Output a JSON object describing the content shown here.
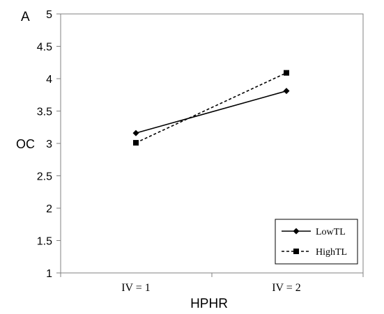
{
  "chart_data": {
    "type": "line",
    "panel_label": "A",
    "xlabel": "HPHR",
    "ylabel": "OC",
    "categories": [
      "IV = 1",
      "IV = 2"
    ],
    "ylim": [
      1,
      5
    ],
    "yticks": [
      "1",
      "1.5",
      "2",
      "2.5",
      "3",
      "3.5",
      "4",
      "4.5",
      "5"
    ],
    "grid": false,
    "legend_position": "bottom-right",
    "series": [
      {
        "name": "LowTL",
        "values": [
          3.16,
          3.81
        ],
        "marker": "diamond",
        "line_style": "solid",
        "color": "#000000"
      },
      {
        "name": "HighTL",
        "values": [
          3.01,
          4.09
        ],
        "marker": "square",
        "line_style": "dashed",
        "color": "#000000"
      }
    ]
  }
}
